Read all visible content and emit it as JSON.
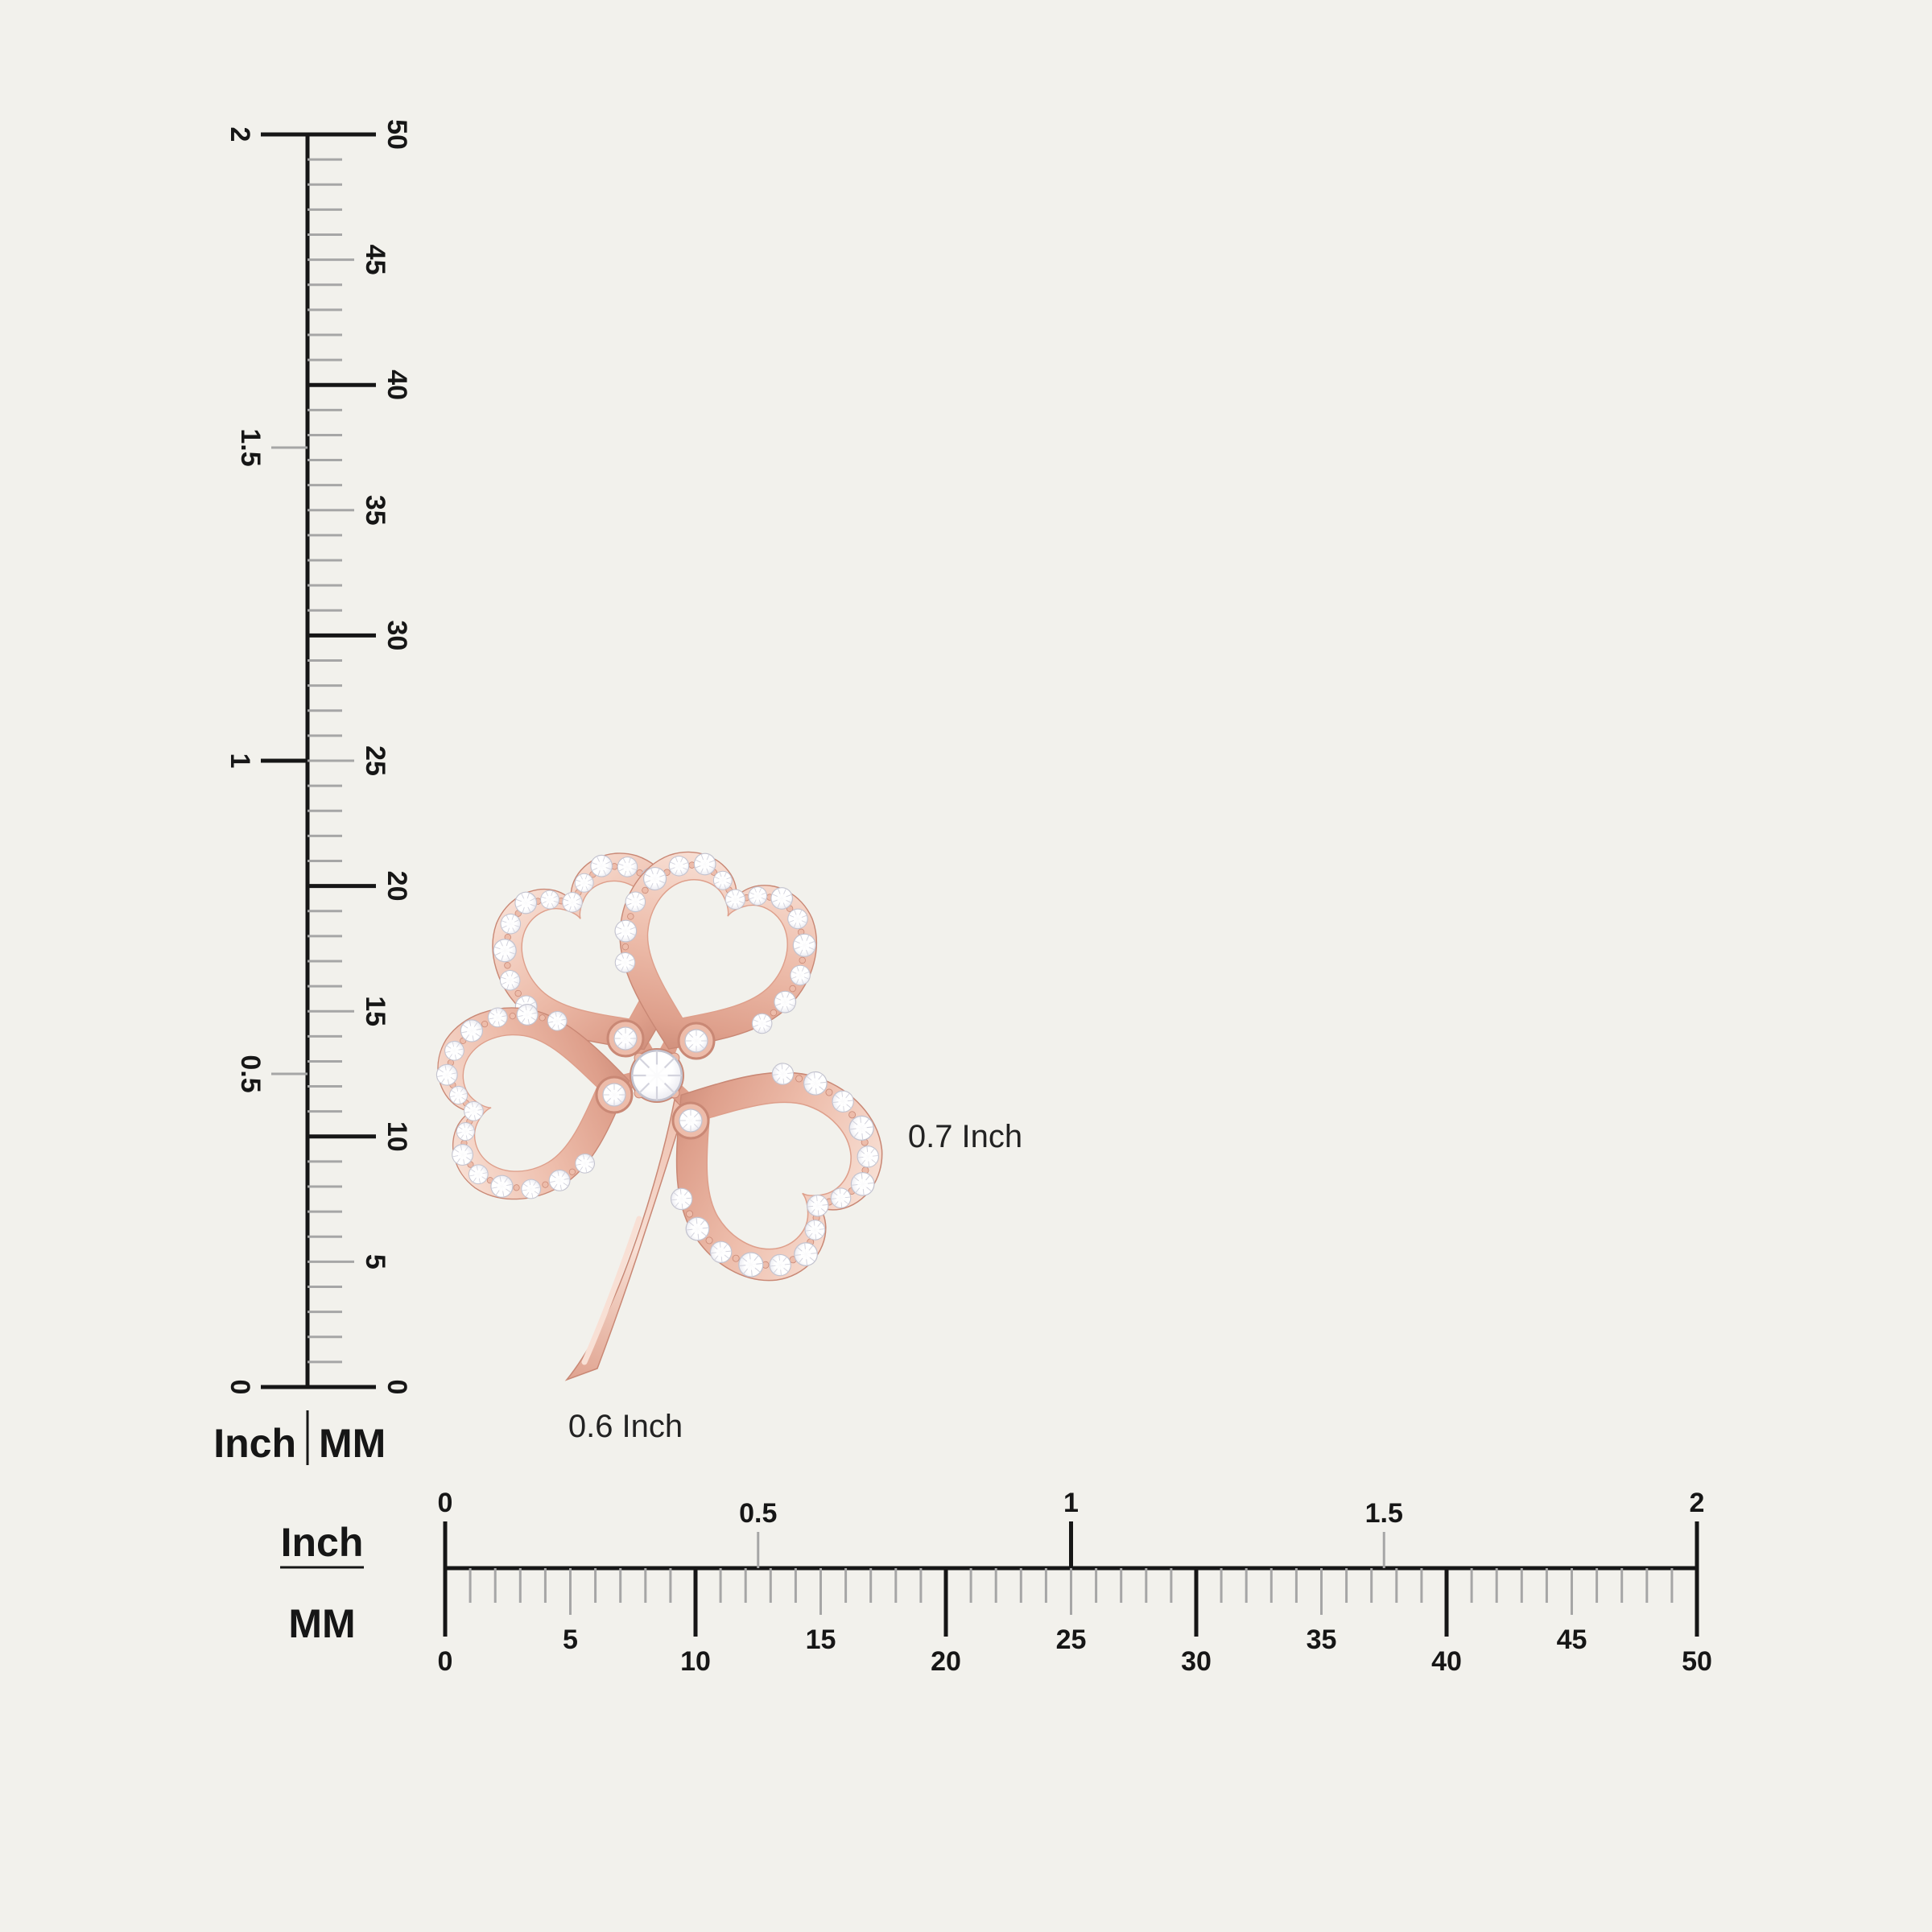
{
  "scene": {
    "background": "#f2f1ec",
    "ink": "#161616",
    "tick_gray": "#a6a6a6"
  },
  "rulers": {
    "vertical": {
      "unit_left": "Inch",
      "unit_right": "MM",
      "inch_labels": [
        "0",
        "0.5",
        "1",
        "1.5",
        "2"
      ],
      "mm_labels": [
        "0",
        "5",
        "10",
        "15",
        "20",
        "25",
        "30",
        "35",
        "40",
        "45",
        "50"
      ]
    },
    "horizontal": {
      "unit_top": "Inch",
      "unit_bottom": "MM",
      "inch_labels": [
        "0",
        "0.5",
        "1",
        "1.5",
        "2"
      ],
      "mm_labels": [
        "0",
        "5",
        "10",
        "15",
        "20",
        "25",
        "30",
        "35",
        "40",
        "45",
        "50"
      ]
    }
  },
  "dimensions": {
    "height_label": "0.7 Inch",
    "width_label": "0.6 Inch"
  },
  "jewelry": {
    "name": "rose-gold-diamond-four-leaf-clover-pendant",
    "petal_count": 4,
    "metal_light": "#f8e0d5",
    "metal_base": "#edbcaa",
    "metal_mid": "#de9f8b",
    "metal_dark": "#c98875",
    "metal_deep": "#b97763",
    "diamond_white": "#ffffff",
    "diamond_facet": "#d4d4de",
    "diamond_edge": "#c2c2ce",
    "dimension_line": "#1a1a1a"
  }
}
